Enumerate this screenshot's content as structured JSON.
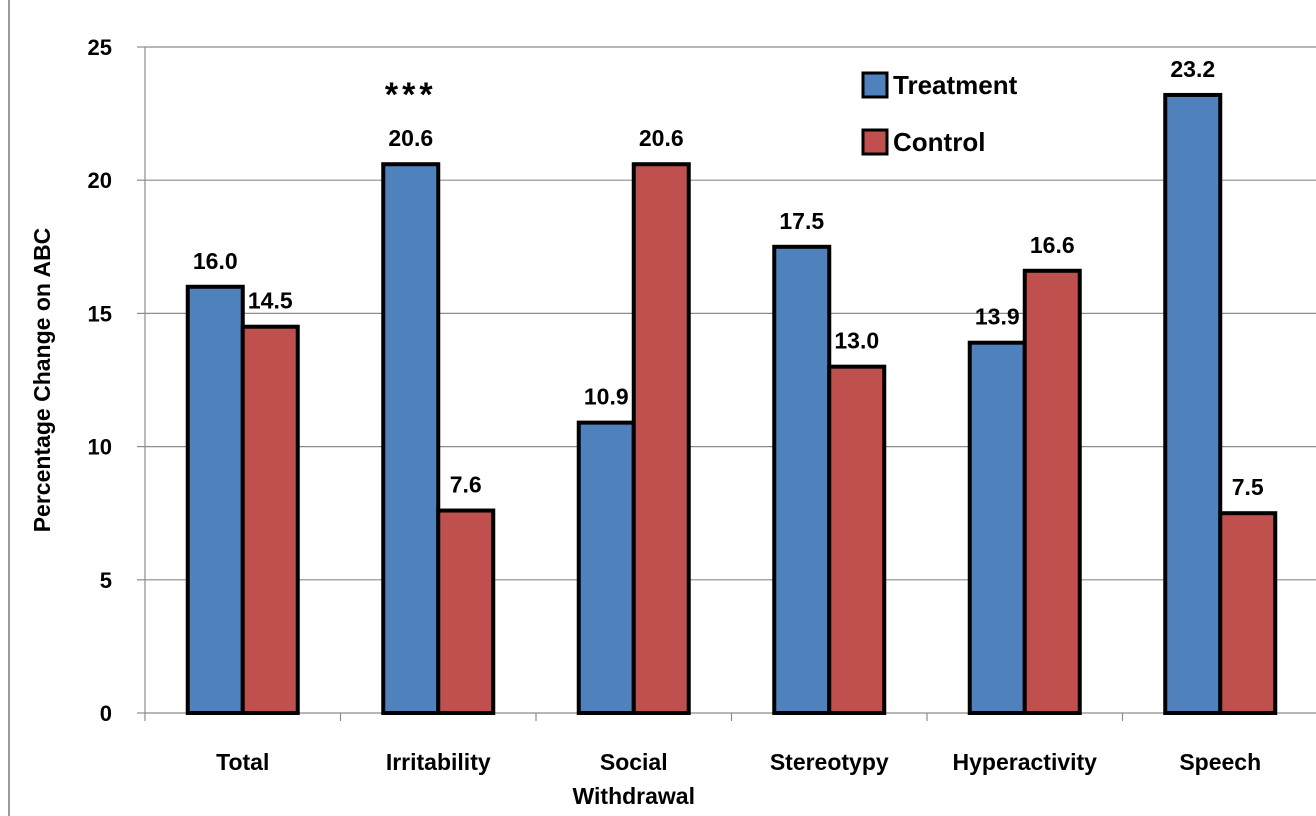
{
  "chart_data": {
    "type": "bar",
    "title": "",
    "xlabel": "",
    "ylabel": "Percentage Change on ABC",
    "ylim": [
      0,
      25
    ],
    "yticks": [
      0,
      5,
      10,
      15,
      20,
      25
    ],
    "grid": true,
    "legend_position": "top-right",
    "categories": [
      "Total",
      "Irritability",
      "Social Withdrawal",
      "Stereotypy",
      "Hyperactivity",
      "Speech"
    ],
    "category_label_lines": [
      [
        "Total"
      ],
      [
        "Irritability"
      ],
      [
        "Social",
        "Withdrawal"
      ],
      [
        "Stereotypy"
      ],
      [
        "Hyperactivity"
      ],
      [
        "Speech"
      ]
    ],
    "series": [
      {
        "name": "Treatment",
        "color": "#4f81bd",
        "values": [
          16.0,
          20.6,
          10.9,
          17.5,
          13.9,
          23.2
        ],
        "labels": [
          "16.0",
          "20.6",
          "10.9",
          "17.5",
          "13.9",
          "23.2"
        ]
      },
      {
        "name": "Control",
        "color": "#c0504d",
        "values": [
          14.5,
          7.6,
          20.6,
          13.0,
          16.6,
          7.5
        ],
        "labels": [
          "14.5",
          "7.6",
          "20.6",
          "13.0",
          "16.6",
          "7.5"
        ]
      }
    ],
    "annotations": [
      {
        "text": "***",
        "category": "Irritability"
      }
    ]
  }
}
